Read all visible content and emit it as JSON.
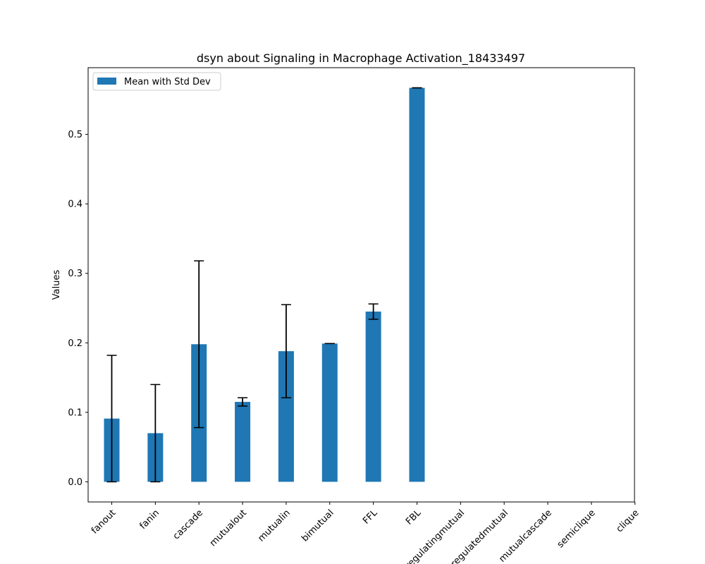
{
  "chart_data": {
    "type": "bar",
    "title": "dsyn about Signaling in Macrophage Activation_18433497",
    "xlabel": "",
    "ylabel": "Values",
    "categories": [
      "fanout",
      "fanin",
      "cascade",
      "mutualout",
      "mutualin",
      "bimutual",
      "FFL",
      "FBL",
      "regulatingmutual",
      "regulatedmutual",
      "mutualcascade",
      "semiclique",
      "clique"
    ],
    "series": [
      {
        "name": "Mean with Std Dev",
        "values": [
          0.091,
          0.07,
          0.198,
          0.115,
          0.188,
          0.199,
          0.245,
          0.567,
          null,
          null,
          null,
          null,
          null
        ],
        "errors": [
          0.091,
          0.07,
          0.12,
          0.006,
          0.067,
          0.0,
          0.011,
          0.0,
          null,
          null,
          null,
          null,
          null
        ],
        "color": "#1f77b4"
      }
    ],
    "ylim": [
      -0.029,
      0.596
    ],
    "yticks": [
      0.0,
      0.1,
      0.2,
      0.3,
      0.4,
      0.5
    ],
    "ytick_labels": [
      "0.0",
      "0.1",
      "0.2",
      "0.3",
      "0.4",
      "0.5"
    ],
    "grid": false,
    "legend_position": "upper-left",
    "error_color": "#000000"
  }
}
